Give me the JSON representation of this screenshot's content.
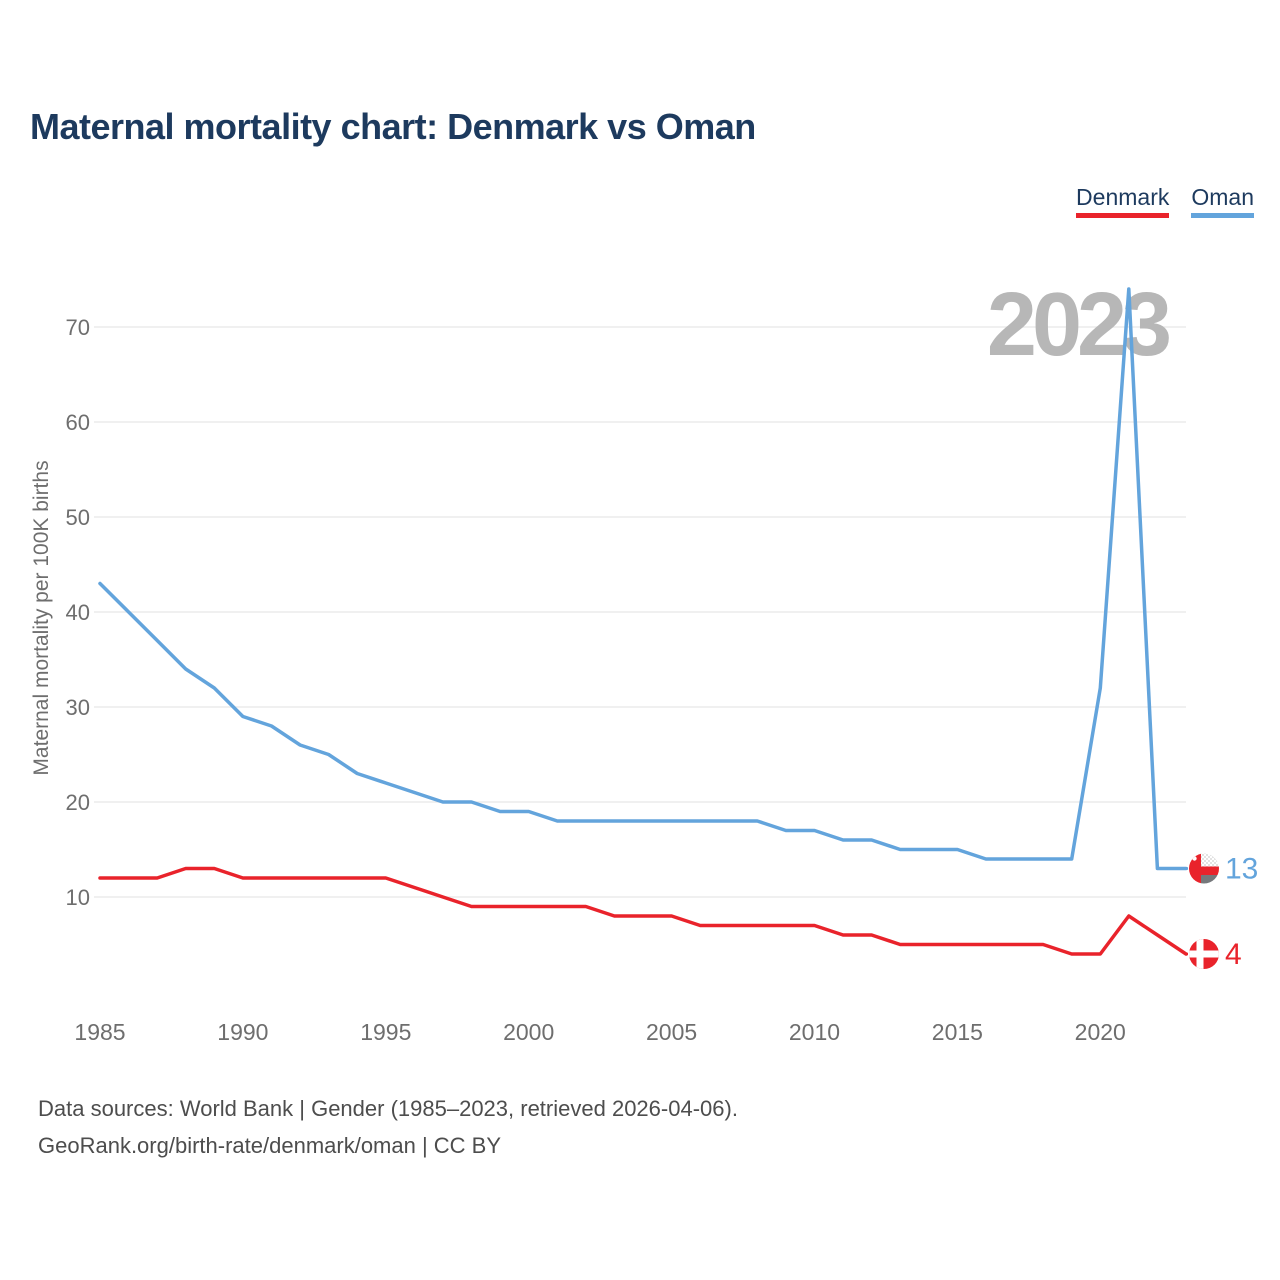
{
  "header": {
    "title": "Maternal mortality chart: Denmark vs Oman"
  },
  "legend": {
    "items": [
      {
        "label": "Denmark",
        "color": "#e9232b"
      },
      {
        "label": "Oman",
        "color": "#63a4dc"
      }
    ]
  },
  "watermark": "2023",
  "footer": {
    "line1": "Data sources: World Bank | Gender (1985–2023, retrieved 2026-04-06).",
    "line2": "GeoRank.org/birth-rate/denmark/oman | CC BY"
  },
  "chart_data": {
    "type": "line",
    "title": "Maternal mortality chart: Denmark vs Oman",
    "xlabel": "",
    "ylabel": "Maternal mortality per 100K births",
    "watermark": "2023",
    "grid": true,
    "legend_position": "top-right",
    "ylim": [
      2,
      76
    ],
    "y_ticks": [
      10,
      20,
      30,
      40,
      50,
      60,
      70
    ],
    "x_ticks": [
      1985,
      1990,
      1995,
      2000,
      2005,
      2010,
      2015,
      2020
    ],
    "x": [
      1985,
      1986,
      1987,
      1988,
      1989,
      1990,
      1991,
      1992,
      1993,
      1994,
      1995,
      1996,
      1997,
      1998,
      1999,
      2000,
      2001,
      2002,
      2003,
      2004,
      2005,
      2006,
      2007,
      2008,
      2009,
      2010,
      2011,
      2012,
      2013,
      2014,
      2015,
      2016,
      2017,
      2018,
      2019,
      2020,
      2021,
      2022,
      2023
    ],
    "series": [
      {
        "name": "Oman",
        "color": "#63a4dc",
        "flag": "oman",
        "end_label": "13",
        "values": [
          43,
          40,
          37,
          34,
          32,
          29,
          28,
          26,
          25,
          23,
          22,
          21,
          20,
          20,
          19,
          19,
          18,
          18,
          18,
          18,
          18,
          18,
          18,
          18,
          17,
          17,
          16,
          16,
          15,
          15,
          15,
          14,
          14,
          14,
          14,
          32,
          74,
          13,
          13
        ]
      },
      {
        "name": "Denmark",
        "color": "#e9232b",
        "flag": "denmark",
        "end_label": "4",
        "values": [
          12,
          12,
          12,
          13,
          13,
          12,
          12,
          12,
          12,
          12,
          12,
          11,
          10,
          9,
          9,
          9,
          9,
          9,
          8,
          8,
          8,
          7,
          7,
          7,
          7,
          7,
          6,
          6,
          5,
          5,
          5,
          5,
          5,
          5,
          4,
          4,
          8,
          6,
          4
        ]
      }
    ]
  },
  "style": {
    "axis_text_color": "#6e6e6e",
    "grid_color": "#ebebeb",
    "watermark_color": "#b7b7b7",
    "flag_gray": "#75787b",
    "flag_white": "#ffffff"
  }
}
